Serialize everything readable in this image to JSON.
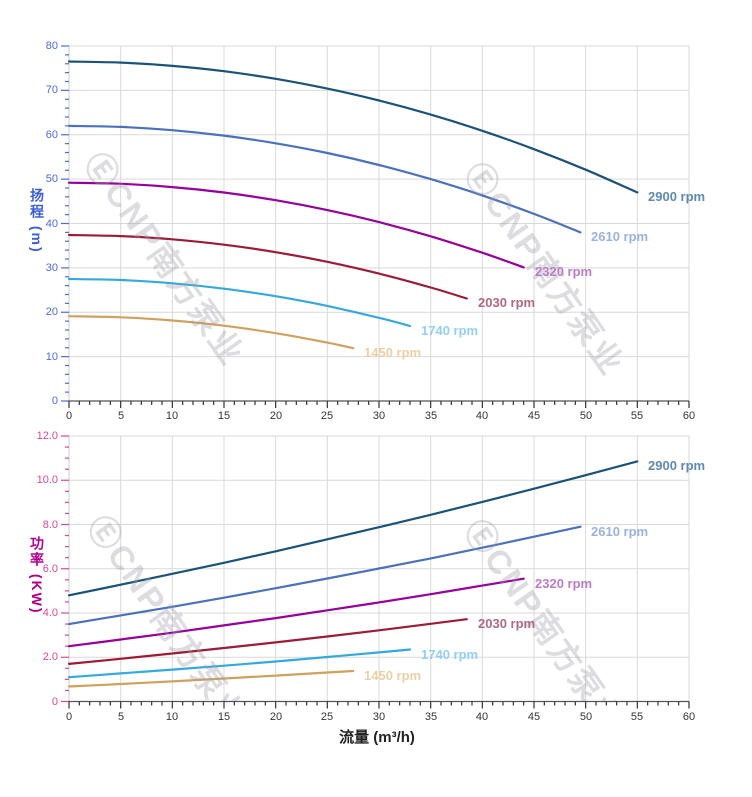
{
  "page": {
    "background": "#ffffff",
    "grid_color": "#d9d9d9"
  },
  "watermark": {
    "text": "ⒺCNP南方泵业",
    "color": "rgba(158,158,170,0.35)"
  },
  "x_axis": {
    "title": "流量 (m³/h)",
    "tick_values": [
      0,
      5,
      10,
      15,
      20,
      25,
      30,
      35,
      40,
      45,
      50,
      55,
      60
    ],
    "tick_labels": [
      "0",
      "5",
      "10",
      "15",
      "20",
      "25",
      "30",
      "35",
      "40",
      "45",
      "50",
      "55",
      "60"
    ],
    "label_color": "#333333",
    "xlim": [
      0,
      60
    ]
  },
  "chart_data": [
    {
      "type": "line",
      "id": "head-curve-chart",
      "title": "",
      "ylabel": "扬程 (m)",
      "xlabel": "",
      "ylim": [
        0,
        80
      ],
      "xlim": [
        0,
        60
      ],
      "grid": true,
      "legend_position": "right-of-curve-end",
      "axis_title_color": "#3c5ed8",
      "axis_label_color": "#4b6ae2",
      "y_tick_values": [
        0,
        10,
        20,
        30,
        40,
        50,
        60,
        70,
        80
      ],
      "y_tick_labels": [
        "0",
        "10",
        "20",
        "30",
        "40",
        "50",
        "60",
        "70",
        "80"
      ],
      "series": [
        {
          "name": "2900 rpm",
          "rpm": 2900,
          "color": "#1b5279",
          "label_color": "#6089b3",
          "x": [
            0,
            5,
            10,
            15,
            20,
            25,
            30,
            35,
            40,
            45,
            50,
            55
          ],
          "y": [
            76.5,
            76.26,
            75.52,
            74.31,
            72.6,
            70.4,
            67.72,
            64.55,
            60.9,
            56.75,
            52.12,
            47.0
          ]
        },
        {
          "name": "2610 rpm",
          "rpm": 2610,
          "color": "#4b70bd",
          "label_color": "#9cb2de",
          "x": [
            0,
            5,
            10,
            15,
            20,
            25,
            30,
            35,
            40,
            45,
            49.5
          ],
          "y": [
            62.0,
            61.76,
            61.02,
            59.8,
            58.08,
            55.88,
            53.19,
            50.0,
            46.33,
            42.17,
            38.0
          ]
        },
        {
          "name": "2320 rpm",
          "rpm": 2320,
          "color": "#97009b",
          "label_color": "#bb7bc9",
          "x": [
            0,
            5,
            10,
            15,
            20,
            25,
            30,
            35,
            40,
            44
          ],
          "y": [
            49.2,
            48.95,
            48.21,
            46.98,
            45.25,
            43.03,
            40.32,
            37.11,
            33.41,
            30.1
          ]
        },
        {
          "name": "2030 rpm",
          "rpm": 2030,
          "color": "#9d1b38",
          "label_color": "#b2687d",
          "x": [
            0,
            5,
            10,
            15,
            20,
            25,
            30,
            35,
            38.5
          ],
          "y": [
            37.4,
            37.16,
            36.43,
            35.23,
            33.54,
            31.37,
            28.72,
            25.58,
            23.1
          ]
        },
        {
          "name": "1740 rpm",
          "rpm": 1740,
          "color": "#35a8de",
          "label_color": "#92cff2",
          "x": [
            0,
            5,
            10,
            15,
            20,
            25,
            30,
            33
          ],
          "y": [
            27.5,
            27.26,
            26.53,
            25.31,
            23.61,
            21.42,
            18.74,
            16.9
          ]
        },
        {
          "name": "1450 rpm",
          "rpm": 1450,
          "color": "#d0a05e",
          "label_color": "#ebd0a6",
          "x": [
            0,
            5,
            10,
            15,
            20,
            25,
            27.5
          ],
          "y": [
            19.1,
            18.86,
            18.15,
            16.96,
            15.29,
            13.15,
            11.9
          ]
        }
      ]
    },
    {
      "type": "line",
      "id": "power-curve-chart",
      "title": "",
      "ylabel": "功率 (KW)",
      "xlabel": "流量 (m³/h)",
      "ylim": [
        0,
        12
      ],
      "xlim": [
        0,
        60
      ],
      "grid": true,
      "legend_position": "right-of-curve-end",
      "axis_title_color": "#b1008e",
      "axis_label_color": "#d94896",
      "y_tick_values": [
        0,
        2,
        4,
        6,
        8,
        10,
        12
      ],
      "y_tick_labels": [
        "0",
        "2.0",
        "4.0",
        "6.0",
        "8.0",
        "10.0",
        "12.0"
      ],
      "series": [
        {
          "name": "2900 rpm",
          "rpm": 2900,
          "color": "#1b5279",
          "label_color": "#6089b3",
          "x": [
            0,
            5,
            10,
            15,
            20,
            25,
            30,
            35,
            40,
            45,
            50,
            55
          ],
          "y": [
            4.8,
            5.28,
            5.77,
            6.27,
            6.79,
            7.33,
            7.88,
            8.44,
            9.02,
            9.62,
            10.23,
            10.85
          ]
        },
        {
          "name": "2610 rpm",
          "rpm": 2610,
          "color": "#4b70bd",
          "label_color": "#9cb2de",
          "x": [
            0,
            5,
            10,
            15,
            20,
            25,
            30,
            35,
            40,
            45,
            49.5
          ],
          "y": [
            3.5,
            3.89,
            4.28,
            4.69,
            5.12,
            5.56,
            6.01,
            6.47,
            6.95,
            7.45,
            7.9
          ]
        },
        {
          "name": "2320 rpm",
          "rpm": 2320,
          "color": "#97009b",
          "label_color": "#bb7bc9",
          "x": [
            0,
            5,
            10,
            15,
            20,
            25,
            30,
            35,
            40,
            44
          ],
          "y": [
            2.5,
            2.8,
            3.11,
            3.44,
            3.77,
            4.12,
            4.48,
            4.85,
            5.24,
            5.55
          ]
        },
        {
          "name": "2030 rpm",
          "rpm": 2030,
          "color": "#9d1b38",
          "label_color": "#b2687d",
          "x": [
            0,
            5,
            10,
            15,
            20,
            25,
            30,
            35,
            38.5
          ],
          "y": [
            1.7,
            1.93,
            2.17,
            2.42,
            2.67,
            2.94,
            3.22,
            3.51,
            3.72
          ]
        },
        {
          "name": "1740 rpm",
          "rpm": 1740,
          "color": "#35a8de",
          "label_color": "#92cff2",
          "x": [
            0,
            5,
            10,
            15,
            20,
            25,
            30,
            33
          ],
          "y": [
            1.1,
            1.27,
            1.44,
            1.62,
            1.81,
            2.01,
            2.22,
            2.35
          ]
        },
        {
          "name": "1450 rpm",
          "rpm": 1450,
          "color": "#d0a05e",
          "label_color": "#ebd0a6",
          "x": [
            0,
            5,
            10,
            15,
            20,
            25,
            27.5
          ],
          "y": [
            0.68,
            0.79,
            0.91,
            1.04,
            1.17,
            1.31,
            1.38
          ]
        }
      ]
    }
  ]
}
